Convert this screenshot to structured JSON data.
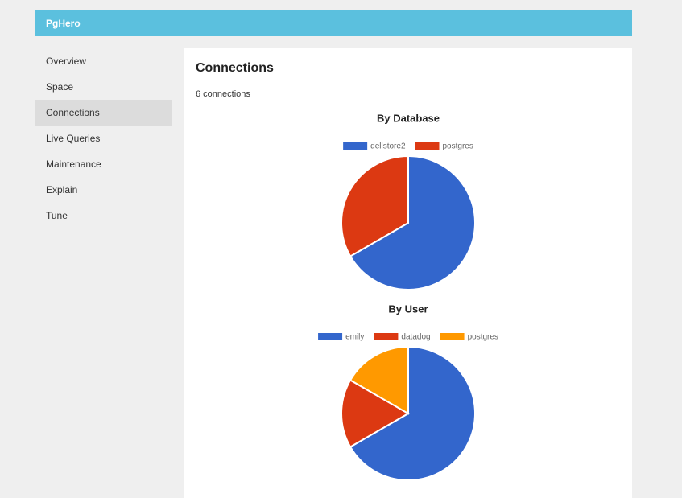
{
  "header": {
    "title": "PgHero"
  },
  "nav": [
    "Overview",
    "Space",
    "Connections",
    "Live Queries",
    "Maintenance",
    "Explain",
    "Tune"
  ],
  "active_nav": 2,
  "page": {
    "title": "Connections",
    "summary": "6 connections"
  },
  "chart_data": [
    {
      "type": "pie",
      "title": "By Database",
      "categories": [
        "dellstore2",
        "postgres"
      ],
      "values": [
        4,
        2
      ],
      "colors": [
        "#3366cc",
        "#dc3912"
      ],
      "legend": "top"
    },
    {
      "type": "pie",
      "title": "By User",
      "categories": [
        "emily",
        "datadog",
        "postgres"
      ],
      "values": [
        4,
        1,
        1
      ],
      "colors": [
        "#3366cc",
        "#dc3912",
        "#ff9900"
      ],
      "legend": "top"
    }
  ]
}
